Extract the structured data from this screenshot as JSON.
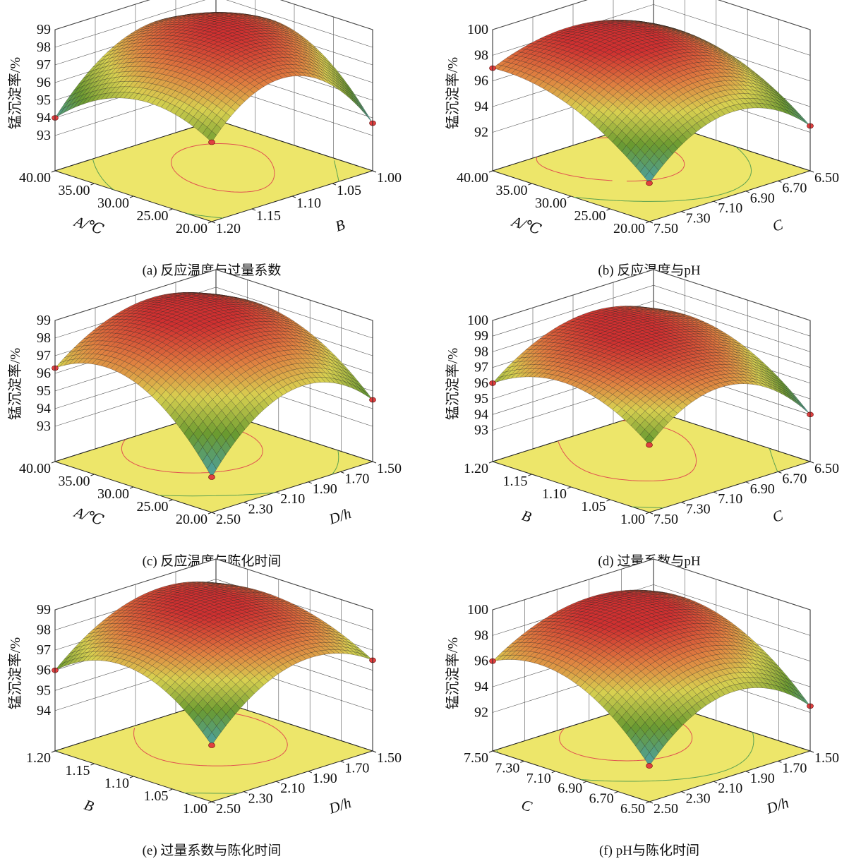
{
  "colors": {
    "floor": "#ede66a",
    "high": "#d03030",
    "mid": "#d8d050",
    "low": "#4aa0a8",
    "contour_high": "#e05050",
    "contour_low": "#5aa050"
  },
  "chart_data": [
    {
      "type": "surface3d",
      "caption": "(a) 反应温度与过量系数",
      "zlabel": "锰沉淀率/%",
      "ulabel": "A/℃",
      "vlabel": "B",
      "u_ticks": [
        "40.00",
        "35.00",
        "30.00",
        "25.00",
        "20.00"
      ],
      "v_ticks": [
        "1.20",
        "1.15",
        "1.10",
        "1.05",
        "1.00"
      ],
      "z_ticks": [
        "93",
        "94",
        "95",
        "96",
        "97",
        "98",
        "99"
      ],
      "zlim": [
        91,
        99
      ],
      "z_grid": [
        [
          94,
          97.5,
          96.5
        ],
        [
          96.5,
          98.8,
          97.5
        ],
        [
          95.5,
          97.8,
          93.7
        ]
      ]
    },
    {
      "type": "surface3d",
      "caption": "(b) 反应温度与pH",
      "zlabel": "锰沉淀率/%",
      "ulabel": "A/℃",
      "vlabel": "C",
      "u_ticks": [
        "40.00",
        "35.00",
        "30.00",
        "25.00",
        "20.00"
      ],
      "v_ticks": [
        "7.50",
        "7.30",
        "7.10",
        "6.90",
        "6.70",
        "6.50"
      ],
      "z_ticks": [
        "92",
        "94",
        "96",
        "98",
        "100"
      ],
      "zlim": [
        89,
        100
      ],
      "z_grid": [
        [
          97,
          98.3,
          96.5
        ],
        [
          96,
          98.5,
          96
        ],
        [
          92,
          95.5,
          92.5
        ]
      ]
    },
    {
      "type": "surface3d",
      "caption": "(c) 反应温度与陈化时间",
      "zlabel": "锰沉淀率/%",
      "ulabel": "A/℃",
      "vlabel": "D/h",
      "u_ticks": [
        "40.00",
        "35.00",
        "30.00",
        "25.00",
        "20.00"
      ],
      "v_ticks": [
        "2.50",
        "2.30",
        "2.10",
        "1.90",
        "1.70",
        "1.50"
      ],
      "z_ticks": [
        "93",
        "94",
        "95",
        "96",
        "97",
        "98",
        "99"
      ],
      "zlim": [
        91,
        99
      ],
      "z_grid": [
        [
          96.3,
          98.5,
          97.5
        ],
        [
          97,
          98.8,
          97.5
        ],
        [
          93,
          96.5,
          94.5
        ]
      ]
    },
    {
      "type": "surface3d",
      "caption": "(d) 过量系数与pH",
      "zlabel": "锰沉淀率/%",
      "ulabel": "B",
      "vlabel": "C",
      "u_ticks": [
        "1.20",
        "1.15",
        "1.10",
        "1.05",
        "1.00"
      ],
      "v_ticks": [
        "7.50",
        "7.30",
        "7.10",
        "6.90",
        "6.70",
        "6.50"
      ],
      "z_ticks": [
        "93",
        "94",
        "95",
        "96",
        "97",
        "98",
        "99",
        "100"
      ],
      "zlim": [
        91,
        100
      ],
      "z_grid": [
        [
          96,
          98.5,
          97.5
        ],
        [
          97.5,
          98.7,
          97.3
        ],
        [
          95.3,
          97.5,
          94
        ]
      ]
    },
    {
      "type": "surface3d",
      "caption": "(e) 过量系数与陈化时间",
      "zlabel": "锰沉淀率/%",
      "ulabel": "B",
      "vlabel": "D/h",
      "u_ticks": [
        "1.20",
        "1.15",
        "1.10",
        "1.05",
        "1.00"
      ],
      "v_ticks": [
        "2.50",
        "2.30",
        "2.10",
        "1.90",
        "1.70",
        "1.50"
      ],
      "z_ticks": [
        "94",
        "95",
        "96",
        "97",
        "98",
        "99"
      ],
      "zlim": [
        92,
        99
      ],
      "z_grid": [
        [
          96,
          98.3,
          97.8
        ],
        [
          97.3,
          98.7,
          98
        ],
        [
          94.8,
          97.5,
          96.5
        ]
      ]
    },
    {
      "type": "surface3d",
      "caption": "(f) pH与陈化时间",
      "zlabel": "锰沉淀率/%",
      "ulabel": "C",
      "vlabel": "D/h",
      "u_ticks": [
        "7.50",
        "7.30",
        "7.10",
        "6.90",
        "6.70",
        "6.50"
      ],
      "v_ticks": [
        "2.50",
        "2.30",
        "2.10",
        "1.90",
        "1.70",
        "1.50"
      ],
      "z_ticks": [
        "92",
        "94",
        "96",
        "98",
        "100"
      ],
      "zlim": [
        89,
        100
      ],
      "z_grid": [
        [
          96,
          98.5,
          97.5
        ],
        [
          96.5,
          98.8,
          97
        ],
        [
          91.8,
          95.5,
          92.5
        ]
      ]
    }
  ]
}
